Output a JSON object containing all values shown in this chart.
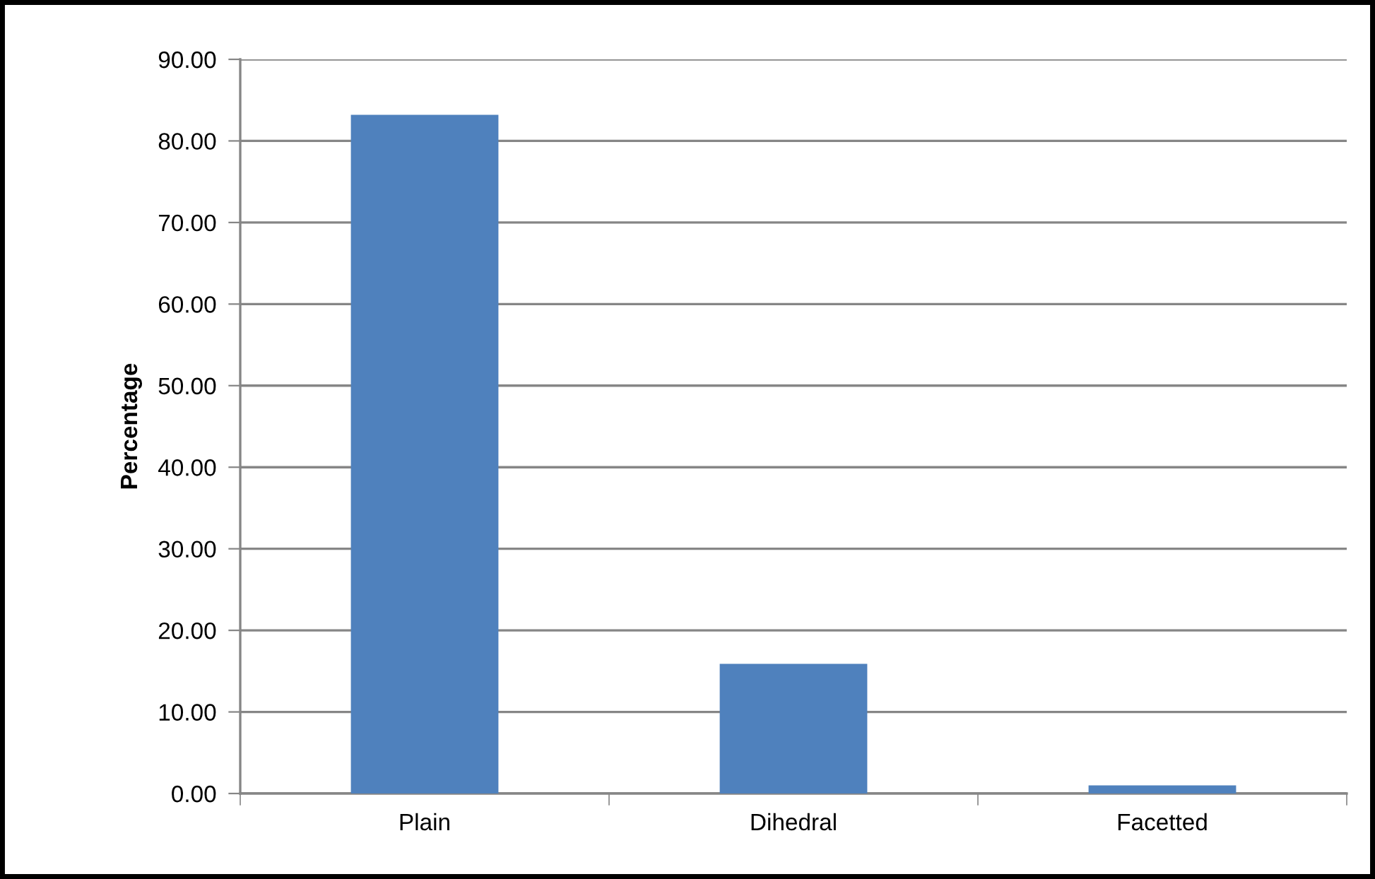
{
  "chart_data": {
    "type": "bar",
    "ylabel": "Percentage",
    "categories": [
      "Plain",
      "Dihedral",
      "Facetted"
    ],
    "values": [
      83.2,
      15.9,
      1.0
    ],
    "color": "#4f81bd",
    "ylim": [
      0,
      90
    ],
    "yticks": [
      {
        "value": 0,
        "label": "0.00"
      },
      {
        "value": 10,
        "label": "10.00"
      },
      {
        "value": 20,
        "label": "20.00"
      },
      {
        "value": 30,
        "label": "30.00"
      },
      {
        "value": 40,
        "label": "40.00"
      },
      {
        "value": 50,
        "label": "50.00"
      },
      {
        "value": 60,
        "label": "60.00"
      },
      {
        "value": 70,
        "label": "70.00"
      },
      {
        "value": 80,
        "label": "80.00"
      },
      {
        "value": 90,
        "label": "90.00"
      }
    ],
    "grid": "y"
  }
}
